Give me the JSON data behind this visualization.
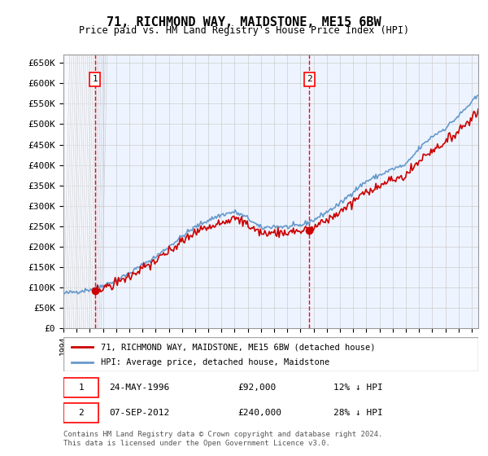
{
  "title": "71, RICHMOND WAY, MAIDSTONE, ME15 6BW",
  "subtitle": "Price paid vs. HM Land Registry's House Price Index (HPI)",
  "ylim": [
    0,
    670000
  ],
  "yticks": [
    0,
    50000,
    100000,
    150000,
    200000,
    250000,
    300000,
    350000,
    400000,
    450000,
    500000,
    550000,
    600000,
    650000
  ],
  "xlim_start": 1994.0,
  "xlim_end": 2025.5,
  "sale1_date": 1996.39,
  "sale1_price": 92000,
  "sale1_label": "1",
  "sale2_date": 2012.68,
  "sale2_price": 240000,
  "sale2_label": "2",
  "legend_line1": "71, RICHMOND WAY, MAIDSTONE, ME15 6BW (detached house)",
  "legend_line2": "HPI: Average price, detached house, Maidstone",
  "annotation1": "1    24-MAY-1996         £92,000        12% ↓ HPI",
  "annotation2": "2    07-SEP-2012         £240,000      28% ↓ HPI",
  "footnote": "Contains HM Land Registry data © Crown copyright and database right 2024.\nThis data is licensed under the Open Government Licence v3.0.",
  "sale_color": "#cc0000",
  "hpi_color": "#6699cc",
  "background_color": "#ddeeff",
  "plot_bg": "#eef4ff"
}
